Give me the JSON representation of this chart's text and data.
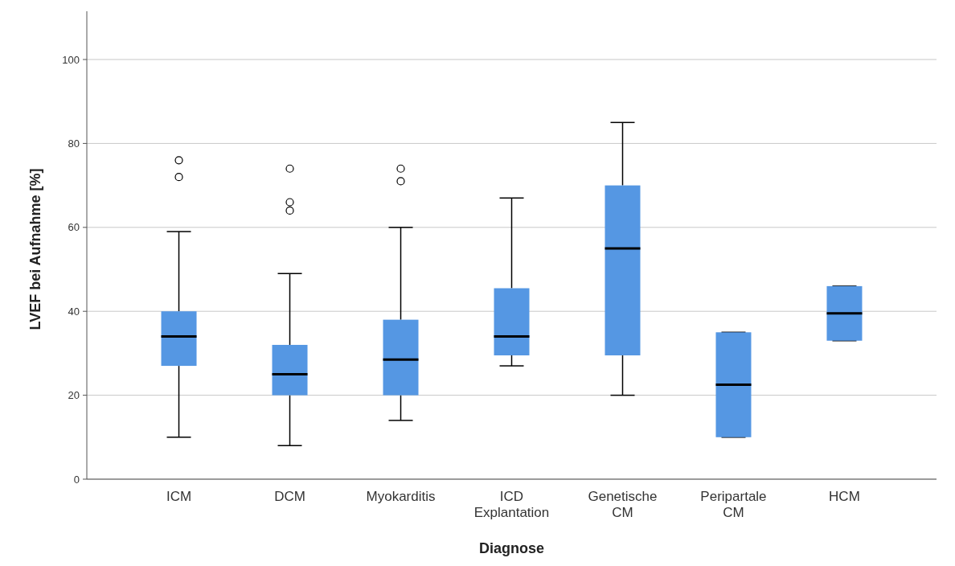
{
  "chart_data": {
    "type": "box",
    "xlabel": "Diagnose",
    "ylabel": "LVEF bei Aufnahme [%]",
    "categories": [
      "ICM",
      "DCM",
      "Myokarditis",
      "ICD Explantation",
      "Genetische CM",
      "Peripartale CM",
      "HCM"
    ],
    "color": "#5597e3",
    "boxes": [
      {
        "low": 10,
        "q1": 27,
        "median": 34,
        "q3": 40,
        "high": 59,
        "outliers": [
          72,
          76
        ]
      },
      {
        "low": 8,
        "q1": 20,
        "median": 25,
        "q3": 32,
        "high": 49,
        "outliers": [
          64,
          66,
          74
        ]
      },
      {
        "low": 14,
        "q1": 20,
        "median": 28.5,
        "q3": 38,
        "high": 60,
        "outliers": [
          71,
          74
        ]
      },
      {
        "low": 27,
        "q1": 29.5,
        "median": 34,
        "q3": 45.5,
        "high": 67
      },
      {
        "low": 20,
        "q1": 29.5,
        "median": 55,
        "q3": 70,
        "high": 85
      },
      {
        "low": 10,
        "q1": 10,
        "median": 22.5,
        "q3": 35,
        "high": 35
      },
      {
        "low": 33,
        "q1": 33,
        "median": 39.5,
        "q3": 46,
        "high": 46
      }
    ],
    "ylim": [
      0,
      111.5
    ],
    "yticks": [
      0,
      20,
      40,
      60,
      80,
      100
    ],
    "grid": "y"
  }
}
